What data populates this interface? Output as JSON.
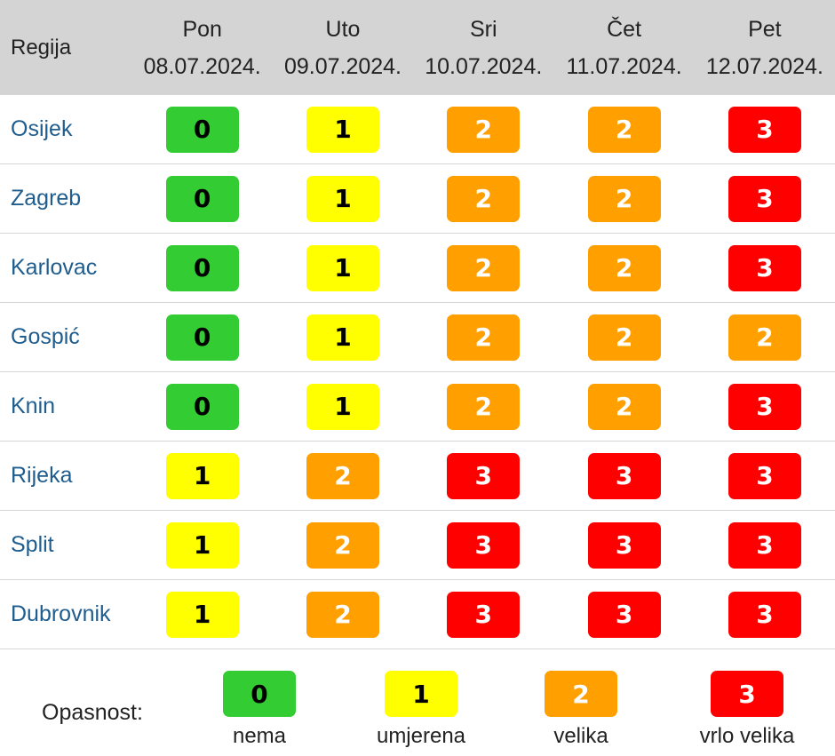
{
  "header": {
    "region_label": "Regija",
    "days": [
      {
        "name": "Pon",
        "date": "08.07.2024."
      },
      {
        "name": "Uto",
        "date": "09.07.2024."
      },
      {
        "name": "Sri",
        "date": "10.07.2024."
      },
      {
        "name": "Čet",
        "date": "11.07.2024."
      },
      {
        "name": "Pet",
        "date": "12.07.2024."
      }
    ]
  },
  "rows": [
    {
      "region": "Osijek",
      "levels": [
        "0",
        "1",
        "2",
        "2",
        "3"
      ]
    },
    {
      "region": "Zagreb",
      "levels": [
        "0",
        "1",
        "2",
        "2",
        "3"
      ]
    },
    {
      "region": "Karlovac",
      "levels": [
        "0",
        "1",
        "2",
        "2",
        "3"
      ]
    },
    {
      "region": "Gospić",
      "levels": [
        "0",
        "1",
        "2",
        "2",
        "2"
      ]
    },
    {
      "region": "Knin",
      "levels": [
        "0",
        "1",
        "2",
        "2",
        "3"
      ]
    },
    {
      "region": "Rijeka",
      "levels": [
        "1",
        "2",
        "3",
        "3",
        "3"
      ]
    },
    {
      "region": "Split",
      "levels": [
        "1",
        "2",
        "3",
        "3",
        "3"
      ]
    },
    {
      "region": "Dubrovnik",
      "levels": [
        "1",
        "2",
        "3",
        "3",
        "3"
      ]
    }
  ],
  "legend": {
    "label": "Opasnost:",
    "items": [
      {
        "level": "0",
        "text": "nema"
      },
      {
        "level": "1",
        "text": "umjerena"
      },
      {
        "level": "2",
        "text": "velika"
      },
      {
        "level": "3",
        "text": "vrlo velika"
      }
    ]
  },
  "colors": {
    "level_0": "#33cc33",
    "level_1": "#ffff00",
    "level_2": "#ff9f00",
    "level_3": "#ff0000",
    "header_bg": "#d4d4d4",
    "region_link": "#1f5d8f"
  }
}
